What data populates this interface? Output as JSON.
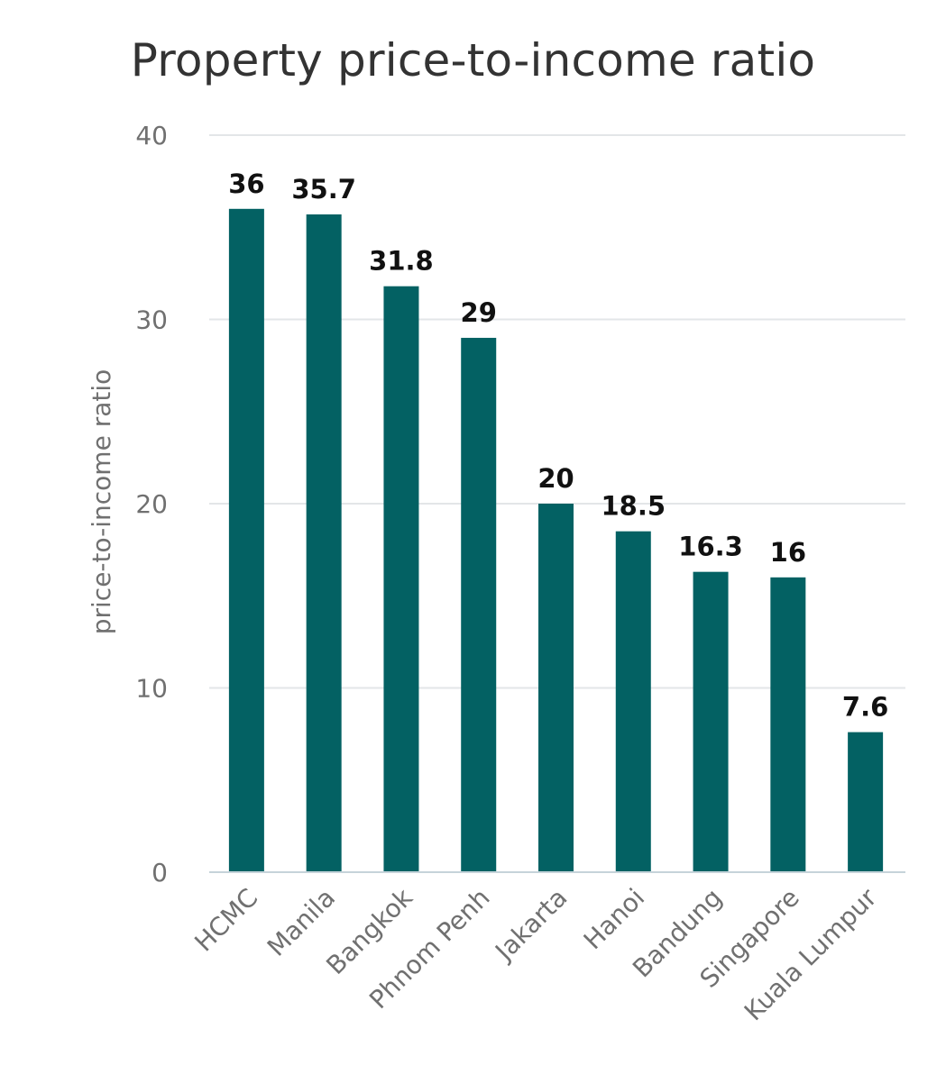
{
  "chart_data": {
    "type": "bar",
    "title": "Property price-to-income ratio",
    "xlabel": "",
    "ylabel": "price-to-income ratio",
    "categories": [
      "HCMC",
      "Manila",
      "Bangkok",
      "Phnom Penh",
      "Jakarta",
      "Hanoi",
      "Bandung",
      "Singapore",
      "Kuala Lumpur"
    ],
    "values": [
      36,
      35.7,
      31.8,
      29,
      20,
      18.5,
      16.3,
      16,
      7.6
    ],
    "value_labels": [
      "36",
      "35.7",
      "31.8",
      "29",
      "20",
      "18.5",
      "16.3",
      "16",
      "7.6"
    ],
    "ylim": [
      0,
      40
    ],
    "yticks": [
      0,
      10,
      20,
      30,
      40
    ],
    "grid": true,
    "legend": "none",
    "colors": {
      "bar": "#036163",
      "grid": "#e3e6e8",
      "baseline": "#c6d3da"
    }
  }
}
